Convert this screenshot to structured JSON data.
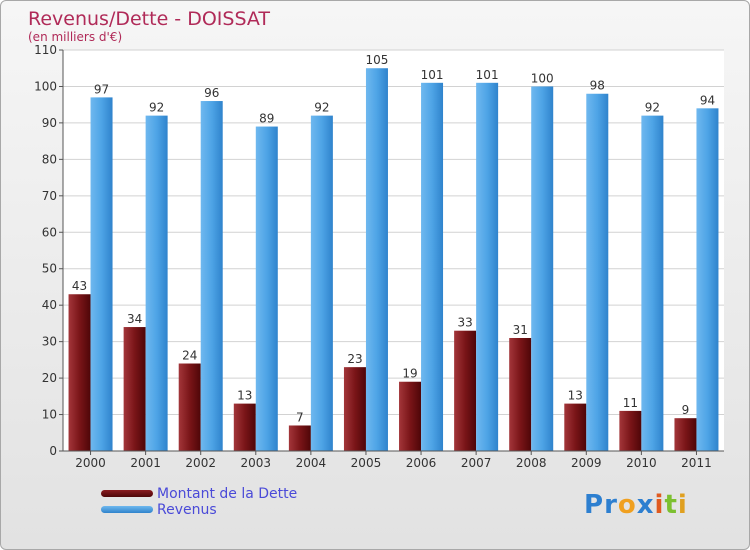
{
  "chart_data": {
    "type": "bar",
    "title": "Revenus/Dette - DOISSAT",
    "subtitle": "(en milliers d'€)",
    "categories": [
      "2000",
      "2001",
      "2002",
      "2003",
      "2004",
      "2005",
      "2006",
      "2007",
      "2008",
      "2009",
      "2010",
      "2011"
    ],
    "series": [
      {
        "name": "Montant de la Dette",
        "color": "#6e0f13",
        "values": [
          43,
          34,
          24,
          13,
          7,
          23,
          19,
          33,
          31,
          13,
          11,
          9
        ]
      },
      {
        "name": "Revenus",
        "color": "#4c9fe0",
        "values": [
          97,
          92,
          96,
          89,
          92,
          105,
          101,
          101,
          100,
          98,
          92,
          94
        ]
      }
    ],
    "ylim": [
      0,
      110
    ],
    "yticks": [
      0,
      10,
      20,
      30,
      40,
      50,
      60,
      70,
      80,
      90,
      100,
      110
    ],
    "grid": true,
    "legend_position": "bottom-left"
  },
  "branding": {
    "logo_text": "Proxiti",
    "logo_letters": [
      {
        "ch": "P",
        "color": "#2d7fd0"
      },
      {
        "ch": "r",
        "color": "#2d7fd0"
      },
      {
        "ch": "o",
        "color": "#f0a020"
      },
      {
        "ch": "x",
        "color": "#2d7fd0"
      },
      {
        "ch": "i",
        "color": "#e05a20"
      },
      {
        "ch": "t",
        "color": "#7cc030"
      },
      {
        "ch": "i",
        "color": "#e0a020"
      }
    ]
  }
}
